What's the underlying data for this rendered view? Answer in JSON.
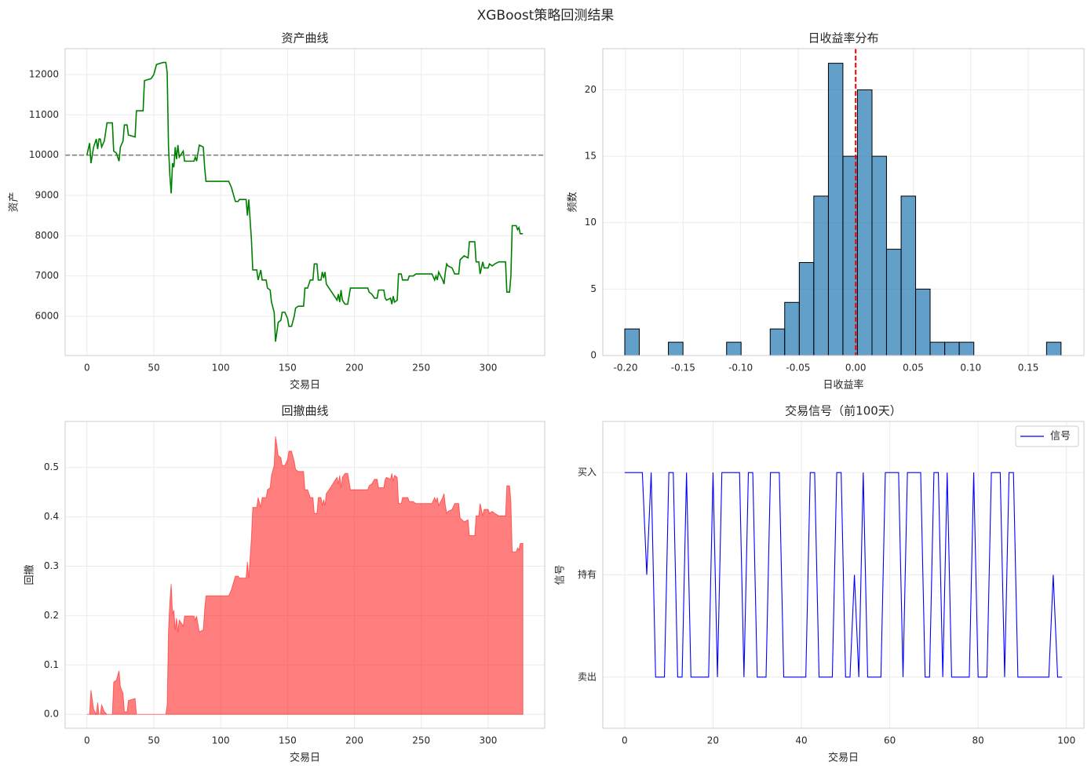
{
  "title": "XGBoost策略回测结果",
  "chart_data": [
    {
      "type": "line",
      "title": "资产曲线",
      "xlabel": "交易日",
      "ylabel": "资产",
      "color": "#008000",
      "grid": true,
      "hline": 10000,
      "hline_color": "#808080",
      "xlim": [
        -16.3,
        342.3
      ],
      "xticks": [
        0,
        50,
        100,
        150,
        200,
        250,
        300
      ],
      "ylim": [
        5026,
        12643
      ],
      "yticks": [
        6000,
        7000,
        8000,
        9000,
        10000,
        11000,
        12000
      ],
      "x": [
        0,
        2,
        3,
        5,
        7,
        8,
        9,
        10,
        11,
        13,
        15,
        19,
        20,
        22,
        24,
        25,
        27,
        28,
        30,
        31,
        36,
        37,
        42,
        43,
        48,
        50,
        52,
        57,
        59,
        60,
        61,
        62,
        63,
        64,
        65,
        66,
        67,
        68,
        69,
        72,
        73,
        80,
        81,
        82,
        84,
        87,
        88,
        89,
        106,
        108,
        111,
        113,
        114,
        119,
        120,
        121,
        123,
        124,
        127,
        128,
        130,
        131,
        134,
        135,
        137,
        138,
        140,
        141,
        142,
        143,
        145,
        146,
        148,
        150,
        151,
        153,
        155,
        156,
        158,
        162,
        163,
        165,
        167,
        169,
        170,
        172,
        173,
        175,
        176,
        177,
        178,
        179,
        181,
        183,
        185,
        187,
        188,
        189,
        190,
        191,
        193,
        195,
        196,
        197,
        210,
        211,
        213,
        215,
        217,
        218,
        222,
        223,
        224,
        227,
        228,
        229,
        230,
        232,
        233,
        235,
        236,
        240,
        241,
        244,
        246,
        258,
        260,
        261,
        262,
        263,
        266,
        267,
        268,
        269,
        270,
        273,
        275,
        278,
        279,
        282,
        285,
        286,
        290,
        291,
        293,
        294,
        296,
        297,
        300,
        301,
        303,
        305,
        308,
        313,
        314,
        316,
        317,
        318,
        321,
        322,
        323,
        324,
        326
      ],
      "values": [
        10000,
        10300,
        9800,
        10200,
        10400,
        10150,
        10400,
        10400,
        10200,
        10350,
        10800,
        10800,
        10100,
        10050,
        9850,
        10200,
        10350,
        10750,
        10750,
        10500,
        10450,
        11100,
        11100,
        11850,
        11900,
        12000,
        12250,
        12300,
        12300,
        12050,
        10200,
        9500,
        9050,
        9800,
        9700,
        10200,
        9900,
        10250,
        9950,
        10100,
        9850,
        9850,
        9950,
        9850,
        10250,
        10200,
        9700,
        9350,
        9350,
        9200,
        8850,
        8850,
        8900,
        8900,
        8500,
        8900,
        7900,
        7150,
        7150,
        6900,
        7150,
        6900,
        6900,
        6700,
        6650,
        6350,
        6100,
        5370,
        5600,
        5850,
        5900,
        6100,
        6100,
        5950,
        5750,
        5750,
        6000,
        6200,
        6250,
        6250,
        6700,
        6700,
        6900,
        6900,
        7300,
        7300,
        6900,
        6900,
        7100,
        6950,
        7100,
        6800,
        6700,
        6600,
        6500,
        6400,
        6550,
        6350,
        6650,
        6400,
        6300,
        6300,
        6500,
        6700,
        6700,
        6600,
        6550,
        6450,
        6450,
        6650,
        6650,
        6450,
        6400,
        6450,
        6300,
        6500,
        6350,
        6400,
        7050,
        7050,
        6900,
        6900,
        7000,
        7000,
        7050,
        7050,
        6900,
        7000,
        6900,
        7100,
        6900,
        6800,
        7100,
        7300,
        7250,
        7200,
        7050,
        7050,
        7400,
        7500,
        7450,
        7850,
        7850,
        7350,
        7350,
        7050,
        7350,
        7200,
        7200,
        7300,
        7250,
        7300,
        7350,
        7350,
        6600,
        6600,
        7000,
        8250,
        8250,
        8150,
        8200,
        8050,
        8050
      ]
    },
    {
      "type": "histogram",
      "title": "日收益率分布",
      "xlabel": "日收益率",
      "ylabel": "频数",
      "color": "#1f77b4",
      "edgecolor": "#000000",
      "grid": true,
      "vline": 0,
      "vline_color": "#ff0000",
      "xlim": [
        -0.2198,
        0.1984
      ],
      "xticks": [
        {
          "value": -0.2,
          "label": "-0.20"
        },
        {
          "value": -0.15,
          "label": "-0.15"
        },
        {
          "value": -0.1,
          "label": "-0.10"
        },
        {
          "value": -0.05,
          "label": "-0.05"
        },
        {
          "value": 0,
          "label": "0.00"
        },
        {
          "value": 0.05,
          "label": "0.05"
        },
        {
          "value": 0.1,
          "label": "0.10"
        },
        {
          "value": 0.15,
          "label": "0.15"
        }
      ],
      "ylim": [
        0,
        23.1
      ],
      "yticks": [
        0,
        5,
        10,
        15,
        20
      ],
      "bins": [
        -0.2007,
        -0.1881,
        -0.1754,
        -0.1628,
        -0.1501,
        -0.1375,
        -0.1249,
        -0.1122,
        -0.0996,
        -0.0869,
        -0.0743,
        -0.0617,
        -0.049,
        -0.0364,
        -0.0237,
        -0.0111,
        0.0015,
        0.0142,
        0.0268,
        0.0395,
        0.0521,
        0.0647,
        0.0774,
        0.09,
        0.1027,
        0.1153,
        0.1279,
        0.1406,
        0.1532,
        0.1659,
        0.1785
      ],
      "values": [
        2,
        0,
        0,
        1,
        0,
        0,
        0,
        1,
        0,
        0,
        2,
        4,
        7,
        12,
        22,
        15,
        20,
        15,
        8,
        12,
        5,
        1,
        1,
        1,
        0,
        0,
        0,
        0,
        0,
        1
      ]
    },
    {
      "type": "area",
      "title": "回撤曲线",
      "xlabel": "交易日",
      "ylabel": "回撤",
      "color": "#ff0000",
      "grid": true,
      "xlim": [
        -16.3,
        342.3
      ],
      "xticks": [
        0,
        50,
        100,
        150,
        200,
        250,
        300
      ],
      "ylim": [
        -0.0283,
        0.5933
      ],
      "yticks": [
        {
          "value": 0,
          "label": "0.0"
        },
        0.1,
        0.2,
        0.3,
        0.4,
        0.5
      ],
      "x": [
        0,
        2,
        3,
        5,
        7,
        8,
        9,
        10,
        11,
        13,
        15,
        19,
        20,
        22,
        24,
        25,
        27,
        28,
        30,
        31,
        36,
        37,
        42,
        43,
        48,
        50,
        52,
        57,
        59,
        60,
        61,
        62,
        63,
        64,
        65,
        66,
        67,
        68,
        69,
        72,
        73,
        80,
        81,
        82,
        84,
        87,
        88,
        89,
        106,
        108,
        111,
        113,
        114,
        119,
        120,
        121,
        123,
        124,
        127,
        128,
        130,
        131,
        134,
        135,
        137,
        138,
        140,
        141,
        142,
        143,
        145,
        146,
        148,
        150,
        151,
        153,
        155,
        156,
        158,
        162,
        163,
        165,
        167,
        169,
        170,
        172,
        173,
        175,
        176,
        177,
        178,
        179,
        181,
        183,
        185,
        187,
        188,
        189,
        190,
        191,
        193,
        195,
        196,
        197,
        210,
        211,
        213,
        215,
        217,
        218,
        222,
        223,
        224,
        227,
        228,
        229,
        230,
        232,
        233,
        235,
        236,
        240,
        241,
        244,
        246,
        258,
        260,
        261,
        262,
        263,
        266,
        267,
        268,
        269,
        270,
        273,
        275,
        278,
        279,
        282,
        285,
        286,
        290,
        291,
        293,
        294,
        296,
        297,
        300,
        301,
        303,
        305,
        308,
        313,
        314,
        316,
        317,
        318,
        321,
        322,
        323,
        324,
        326
      ],
      "values": [
        0,
        0,
        0.049,
        0.01,
        0,
        0.024,
        0,
        0,
        0.019,
        0.005,
        0,
        0,
        0.065,
        0.069,
        0.088,
        0.056,
        0.042,
        0.005,
        0.005,
        0.028,
        0.032,
        0,
        0,
        0,
        0,
        0,
        0,
        0,
        0,
        0.02,
        0.171,
        0.228,
        0.264,
        0.203,
        0.211,
        0.171,
        0.195,
        0.167,
        0.191,
        0.179,
        0.199,
        0.199,
        0.191,
        0.199,
        0.167,
        0.171,
        0.211,
        0.24,
        0.24,
        0.252,
        0.28,
        0.28,
        0.276,
        0.276,
        0.309,
        0.276,
        0.358,
        0.419,
        0.419,
        0.439,
        0.419,
        0.439,
        0.439,
        0.455,
        0.459,
        0.484,
        0.504,
        0.563,
        0.545,
        0.524,
        0.52,
        0.504,
        0.504,
        0.516,
        0.533,
        0.533,
        0.512,
        0.496,
        0.492,
        0.492,
        0.455,
        0.455,
        0.439,
        0.439,
        0.407,
        0.407,
        0.439,
        0.439,
        0.423,
        0.435,
        0.423,
        0.447,
        0.455,
        0.463,
        0.472,
        0.48,
        0.467,
        0.484,
        0.459,
        0.48,
        0.488,
        0.488,
        0.472,
        0.455,
        0.455,
        0.463,
        0.467,
        0.476,
        0.476,
        0.459,
        0.459,
        0.476,
        0.48,
        0.476,
        0.488,
        0.472,
        0.484,
        0.48,
        0.427,
        0.427,
        0.439,
        0.439,
        0.431,
        0.431,
        0.427,
        0.427,
        0.439,
        0.431,
        0.439,
        0.423,
        0.439,
        0.447,
        0.423,
        0.407,
        0.411,
        0.415,
        0.427,
        0.427,
        0.398,
        0.39,
        0.394,
        0.362,
        0.362,
        0.402,
        0.402,
        0.427,
        0.402,
        0.415,
        0.415,
        0.407,
        0.411,
        0.407,
        0.402,
        0.402,
        0.463,
        0.463,
        0.431,
        0.329,
        0.329,
        0.337,
        0.333,
        0.346,
        0.346
      ]
    },
    {
      "type": "line",
      "title": "交易信号（前100天）",
      "xlabel": "交易日",
      "ylabel": "信号",
      "grid": true,
      "legend": "upper right",
      "xlim": [
        -4.95,
        103.95
      ],
      "xticks": [
        0,
        20,
        40,
        60,
        80,
        100
      ],
      "ylim": [
        -1.5,
        1.5
      ],
      "yticks": [
        {
          "value": -1,
          "label": "卖出"
        },
        {
          "value": 0,
          "label": "持有"
        },
        {
          "value": 1,
          "label": "买入"
        }
      ],
      "x": [
        0,
        1,
        2,
        3,
        4,
        5,
        6,
        7,
        8,
        9,
        10,
        11,
        12,
        13,
        14,
        15,
        16,
        17,
        18,
        19,
        20,
        21,
        22,
        23,
        24,
        25,
        26,
        27,
        28,
        29,
        30,
        31,
        32,
        33,
        34,
        35,
        36,
        37,
        38,
        39,
        40,
        41,
        42,
        43,
        44,
        45,
        46,
        47,
        48,
        49,
        50,
        51,
        52,
        53,
        54,
        55,
        56,
        57,
        58,
        59,
        60,
        61,
        62,
        63,
        64,
        65,
        66,
        67,
        68,
        69,
        70,
        71,
        72,
        73,
        74,
        75,
        76,
        77,
        78,
        79,
        80,
        81,
        82,
        83,
        84,
        85,
        86,
        87,
        88,
        89,
        90,
        91,
        92,
        93,
        94,
        95,
        96,
        97,
        98,
        99
      ],
      "series": [
        {
          "name": "信号",
          "color": "#0000ff",
          "values": [
            1,
            1,
            1,
            1,
            1,
            0,
            1,
            -1,
            -1,
            -1,
            1,
            1,
            -1,
            -1,
            1,
            -1,
            -1,
            -1,
            -1,
            -1,
            1,
            -1,
            1,
            1,
            1,
            1,
            1,
            -1,
            1,
            1,
            -1,
            -1,
            -1,
            1,
            1,
            1,
            -1,
            -1,
            -1,
            -1,
            -1,
            -1,
            1,
            1,
            -1,
            -1,
            -1,
            -1,
            1,
            1,
            -1,
            -1,
            0,
            -1,
            1,
            -1,
            -1,
            -1,
            -1,
            1,
            1,
            1,
            1,
            -1,
            1,
            1,
            1,
            1,
            -1,
            -1,
            1,
            1,
            -1,
            1,
            -1,
            -1,
            -1,
            -1,
            -1,
            1,
            -1,
            -1,
            -1,
            1,
            1,
            1,
            -1,
            1,
            1,
            -1,
            -1,
            -1,
            -1,
            -1,
            -1,
            -1,
            -1,
            0,
            -1,
            -1
          ]
        }
      ]
    }
  ]
}
